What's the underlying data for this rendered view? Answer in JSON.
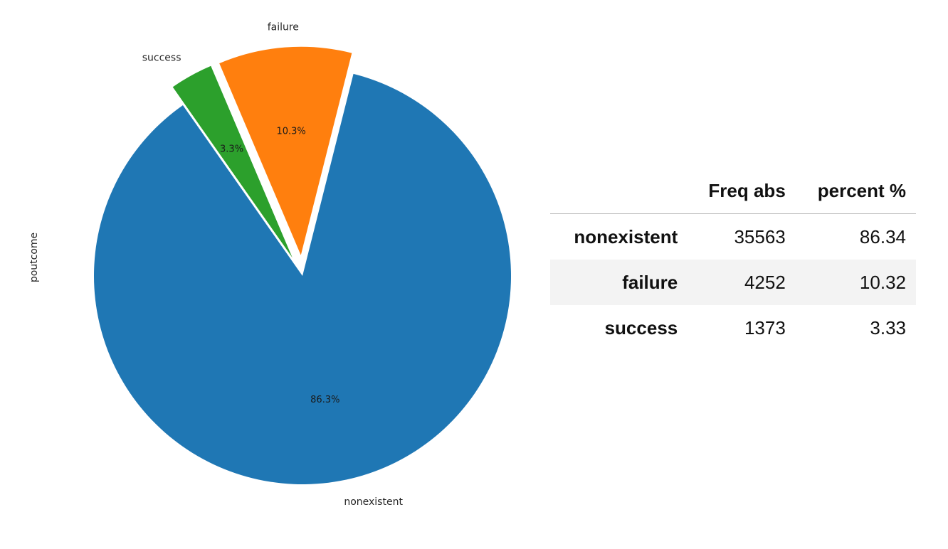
{
  "chart_data": {
    "type": "pie",
    "ylabel": "poutcome",
    "categories": [
      "nonexistent",
      "failure",
      "success"
    ],
    "values": [
      86.34,
      10.32,
      3.33
    ],
    "pct_labels": [
      "86.3%",
      "10.3%",
      "3.3%"
    ],
    "colors": [
      "#1f77b4",
      "#ff7f0e",
      "#2ca02c"
    ],
    "exploded": [
      "failure",
      "success"
    ],
    "start_angle_deg": 125
  },
  "table": {
    "columns": [
      "Freq abs",
      "percent %"
    ],
    "rows": [
      {
        "label": "nonexistent",
        "freq_abs": "35563",
        "percent": "86.34"
      },
      {
        "label": "failure",
        "freq_abs": "4252",
        "percent": "10.32"
      },
      {
        "label": "success",
        "freq_abs": "1373",
        "percent": "3.33"
      }
    ]
  }
}
